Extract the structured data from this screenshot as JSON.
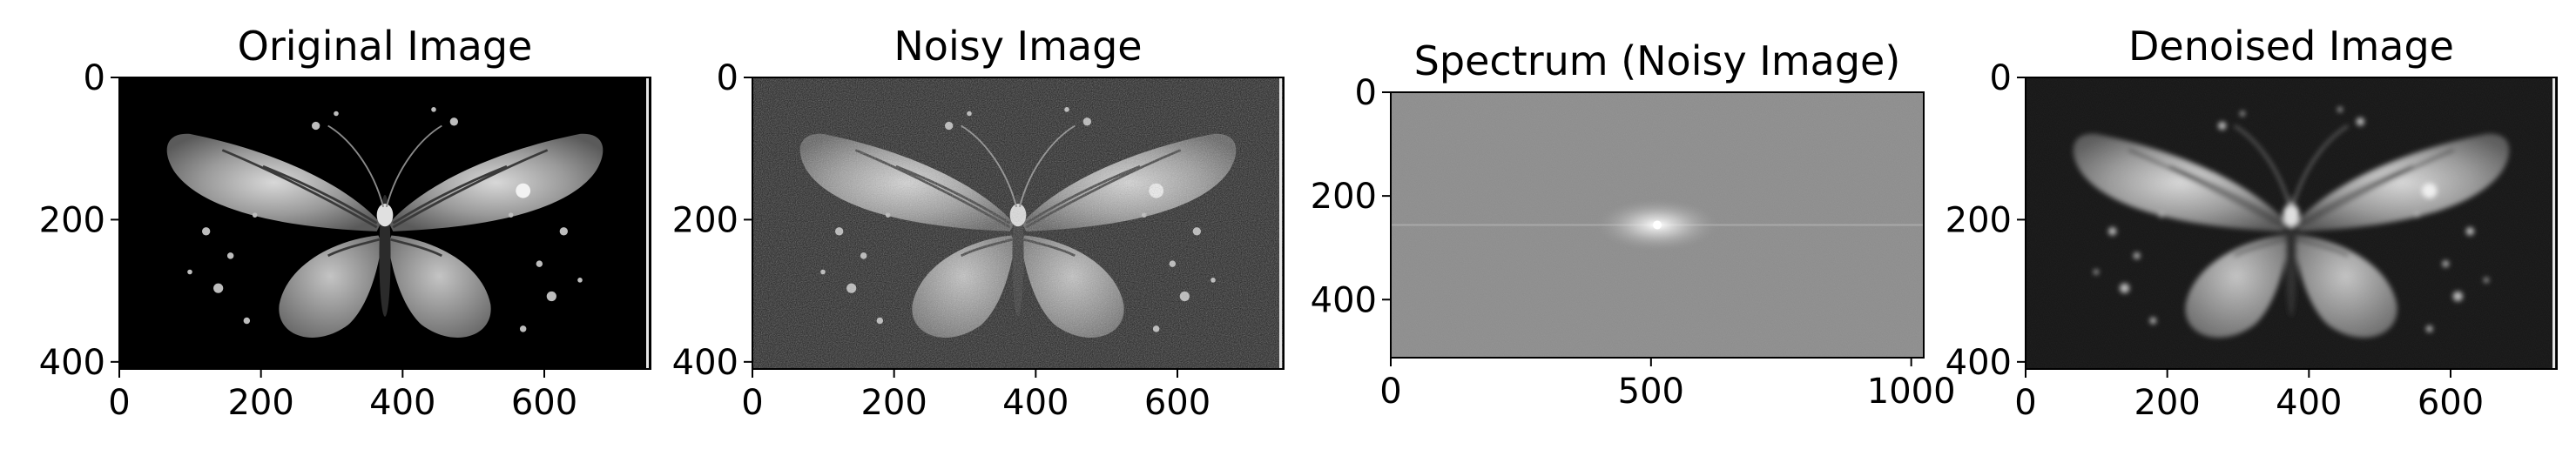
{
  "chart_data": [
    {
      "type": "image",
      "title": "Original Image",
      "colormap": "gray",
      "x_ticks": [
        "0",
        "200",
        "400",
        "600"
      ],
      "y_ticks": [
        "0",
        "200",
        "400"
      ],
      "xlim": [
        0,
        750
      ],
      "ylim": [
        410,
        0
      ]
    },
    {
      "type": "image",
      "title": "Noisy Image",
      "colormap": "gray",
      "x_ticks": [
        "0",
        "200",
        "400",
        "600"
      ],
      "y_ticks": [
        "0",
        "200",
        "400"
      ],
      "xlim": [
        0,
        750
      ],
      "ylim": [
        410,
        0
      ]
    },
    {
      "type": "image",
      "title": "Spectrum (Noisy Image)",
      "colormap": "gray",
      "x_ticks": [
        "0",
        "500",
        "1000"
      ],
      "y_ticks": [
        "0",
        "200",
        "400"
      ],
      "xlim": [
        0,
        1024
      ],
      "ylim": [
        512,
        0
      ]
    },
    {
      "type": "image",
      "title": "Denoised Image",
      "colormap": "gray",
      "x_ticks": [
        "0",
        "200",
        "400",
        "600"
      ],
      "y_ticks": [
        "0",
        "200",
        "400"
      ],
      "xlim": [
        0,
        750
      ],
      "ylim": [
        410,
        0
      ]
    }
  ]
}
